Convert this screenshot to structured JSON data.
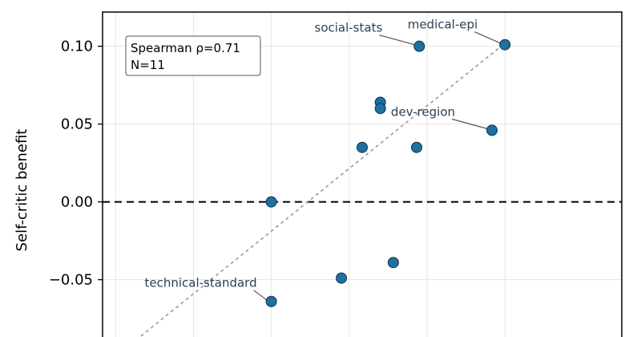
{
  "chart_data": {
    "type": "scatter",
    "title": "",
    "xlabel": "",
    "ylabel": "Self-critic benefit",
    "xlim": [
      0,
      10
    ],
    "ylim": [
      -0.092,
      0.122
    ],
    "y_ticks": [
      0.1,
      0.05,
      0.0,
      -0.05
    ],
    "y_tick_labels": [
      "0.10",
      "0.05",
      "0.00",
      "−0.05"
    ],
    "x_grid": [
      0.25,
      1.75,
      3.25,
      4.75,
      6.25,
      7.75
    ],
    "grid": true,
    "points": [
      {
        "x": 3.25,
        "y": 0.0
      },
      {
        "x": 3.25,
        "y": -0.064,
        "label": "technical-standard"
      },
      {
        "x": 4.6,
        "y": -0.049
      },
      {
        "x": 5.0,
        "y": 0.035
      },
      {
        "x": 5.35,
        "y": 0.064
      },
      {
        "x": 5.35,
        "y": 0.06
      },
      {
        "x": 5.6,
        "y": -0.039
      },
      {
        "x": 6.05,
        "y": 0.035
      },
      {
        "x": 6.1,
        "y": 0.1,
        "label": "social-stats"
      },
      {
        "x": 7.5,
        "y": 0.046,
        "label": "dev-region"
      },
      {
        "x": 7.75,
        "y": 0.101,
        "label": "medical-epi"
      }
    ],
    "reference_line_y": 0.0,
    "trend_line": {
      "x1": 0.45,
      "y1": -0.094,
      "x2": 7.75,
      "y2": 0.102
    },
    "stats": {
      "line1": "Spearman ρ=0.71",
      "line2": "N=11"
    },
    "colors": {
      "point": "#1f6fa0",
      "point_edge": "#0e3350",
      "trend": "#999999",
      "annot": "#2c3e50",
      "grid": "#e6e6e6"
    }
  }
}
